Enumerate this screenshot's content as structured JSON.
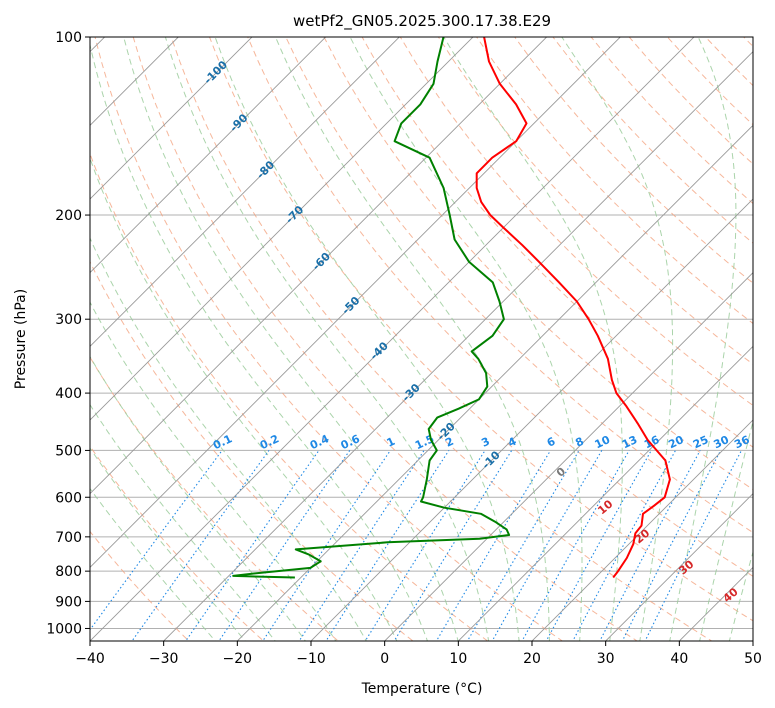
{
  "chart_data": {
    "type": "line",
    "title": "wetPf2_GN05.2025.300.17.38.E29",
    "xlabel": "Temperature (°C)",
    "ylabel": "Pressure (hPa)",
    "xlim": [
      -40,
      50
    ],
    "ylim": [
      1050,
      100
    ],
    "yscale": "log",
    "grid": true,
    "skew": "skew-T log-P",
    "x_ticks": [
      -40,
      -30,
      -20,
      -10,
      0,
      10,
      20,
      30,
      40,
      50
    ],
    "y_ticks": [
      100,
      200,
      300,
      400,
      500,
      600,
      700,
      800,
      900,
      1000
    ],
    "x_tick_labels": [
      "−40",
      "−30",
      "−20",
      "−10",
      "0",
      "10",
      "20",
      "30",
      "40",
      "50"
    ],
    "y_tick_labels": [
      "100",
      "200",
      "300",
      "400",
      "500",
      "600",
      "700",
      "800",
      "900",
      "1000"
    ],
    "colors": {
      "temperature": "#ff0000",
      "dewpoint": "#008000",
      "isotherm": "#999999",
      "dry_adiabat": "#f4a582",
      "moist_adiabat": "#9ccc9c",
      "mixing_ratio": "#1e88e5",
      "isotherm_label": "#1a6fa8",
      "dry_adiabat_label": "#d62728",
      "zero_label": "#777777"
    },
    "series": [
      {
        "key": "temperature",
        "points": [
          {
            "p": 820,
            "t": 22.4
          },
          {
            "p": 800,
            "t": 22.2
          },
          {
            "p": 760,
            "t": 21.6
          },
          {
            "p": 720,
            "t": 20.6
          },
          {
            "p": 690,
            "t": 19.4
          },
          {
            "p": 670,
            "t": 19.2
          },
          {
            "p": 640,
            "t": 17.8
          },
          {
            "p": 620,
            "t": 18.2
          },
          {
            "p": 600,
            "t": 18.5
          },
          {
            "p": 560,
            "t": 16.8
          },
          {
            "p": 520,
            "t": 13.6
          },
          {
            "p": 480,
            "t": 8.4
          },
          {
            "p": 450,
            "t": 4.8
          },
          {
            "p": 420,
            "t": 0.8
          },
          {
            "p": 400,
            "t": -2.2
          },
          {
            "p": 380,
            "t": -4.6
          },
          {
            "p": 350,
            "t": -8.0
          },
          {
            "p": 320,
            "t": -12.5
          },
          {
            "p": 300,
            "t": -16.0
          },
          {
            "p": 280,
            "t": -20.0
          },
          {
            "p": 260,
            "t": -25.0
          },
          {
            "p": 240,
            "t": -30.5
          },
          {
            "p": 225,
            "t": -35.0
          },
          {
            "p": 210,
            "t": -40.0
          },
          {
            "p": 200,
            "t": -43.5
          },
          {
            "p": 190,
            "t": -46.5
          },
          {
            "p": 180,
            "t": -49.0
          },
          {
            "p": 170,
            "t": -51.0
          },
          {
            "p": 160,
            "t": -51.0
          },
          {
            "p": 150,
            "t": -50.0
          },
          {
            "p": 140,
            "t": -51.0
          },
          {
            "p": 130,
            "t": -55.0
          },
          {
            "p": 120,
            "t": -60.0
          },
          {
            "p": 110,
            "t": -64.5
          },
          {
            "p": 100,
            "t": -68.5
          }
        ]
      },
      {
        "key": "dewpoint",
        "points": [
          {
            "p": 820,
            "t": -20.8
          },
          {
            "p": 815,
            "t": -29.4
          },
          {
            "p": 805,
            "t": -26.0
          },
          {
            "p": 790,
            "t": -20.0
          },
          {
            "p": 770,
            "t": -19.5
          },
          {
            "p": 750,
            "t": -22.0
          },
          {
            "p": 735,
            "t": -24.5
          },
          {
            "p": 715,
            "t": -13.0
          },
          {
            "p": 705,
            "t": -1.0
          },
          {
            "p": 695,
            "t": 2.5
          },
          {
            "p": 680,
            "t": 1.4
          },
          {
            "p": 660,
            "t": -1.2
          },
          {
            "p": 640,
            "t": -4.2
          },
          {
            "p": 625,
            "t": -10.0
          },
          {
            "p": 610,
            "t": -14.0
          },
          {
            "p": 600,
            "t": -14.3
          },
          {
            "p": 560,
            "t": -16.2
          },
          {
            "p": 520,
            "t": -18.4
          },
          {
            "p": 500,
            "t": -18.8
          },
          {
            "p": 480,
            "t": -21.0
          },
          {
            "p": 460,
            "t": -22.8
          },
          {
            "p": 440,
            "t": -23.2
          },
          {
            "p": 425,
            "t": -21.5
          },
          {
            "p": 410,
            "t": -20.0
          },
          {
            "p": 390,
            "t": -20.6
          },
          {
            "p": 370,
            "t": -22.6
          },
          {
            "p": 350,
            "t": -25.6
          },
          {
            "p": 340,
            "t": -27.5
          },
          {
            "p": 320,
            "t": -26.8
          },
          {
            "p": 300,
            "t": -27.5
          },
          {
            "p": 280,
            "t": -30.5
          },
          {
            "p": 260,
            "t": -34.0
          },
          {
            "p": 240,
            "t": -40.0
          },
          {
            "p": 220,
            "t": -45.0
          },
          {
            "p": 200,
            "t": -49.0
          },
          {
            "p": 180,
            "t": -53.5
          },
          {
            "p": 160,
            "t": -59.5
          },
          {
            "p": 150,
            "t": -66.5
          },
          {
            "p": 140,
            "t": -68.0
          },
          {
            "p": 130,
            "t": -68.0
          },
          {
            "p": 120,
            "t": -69.0
          },
          {
            "p": 110,
            "t": -71.5
          },
          {
            "p": 100,
            "t": -74.0
          }
        ]
      }
    ],
    "isotherm_labels": [
      {
        "text": "-100",
        "t": -100,
        "p": 115
      },
      {
        "text": "-90",
        "t": -90,
        "p": 140
      },
      {
        "text": "-80",
        "t": -80,
        "p": 168
      },
      {
        "text": "-70",
        "t": -70,
        "p": 200
      },
      {
        "text": "-60",
        "t": -60,
        "p": 240
      },
      {
        "text": "-50",
        "t": -50,
        "p": 285
      },
      {
        "text": "-40",
        "t": -40,
        "p": 340
      },
      {
        "text": "-30",
        "t": -30,
        "p": 400
      },
      {
        "text": "-20",
        "t": -20,
        "p": 465
      },
      {
        "text": "-10",
        "t": -10,
        "p": 520
      }
    ],
    "mixing_ratio_values": [
      0.1,
      0.2,
      0.4,
      0.6,
      1,
      1.5,
      2,
      3,
      4,
      6,
      8,
      10,
      13,
      16,
      20,
      25,
      30,
      36
    ],
    "mixing_ratio_labels": [
      "0.1",
      "0.2",
      "0.4",
      "0.6",
      "1",
      "1.5",
      "2",
      "3",
      "4",
      "6",
      "8",
      "10",
      "13",
      "16",
      "20",
      "25",
      "30",
      "36"
    ],
    "adiabat_labels": [
      {
        "text": "0",
        "t": 24,
        "p": 545,
        "color_key": "zero_label"
      },
      {
        "text": "10",
        "t": 30,
        "p": 625,
        "color_key": "dry_adiabat_label"
      },
      {
        "text": "20",
        "t": 35,
        "p": 700,
        "color_key": "dry_adiabat_label"
      },
      {
        "text": "30",
        "t": 41,
        "p": 790,
        "color_key": "dry_adiabat_label"
      },
      {
        "text": "40",
        "t": 47,
        "p": 880,
        "color_key": "dry_adiabat_label"
      }
    ]
  }
}
